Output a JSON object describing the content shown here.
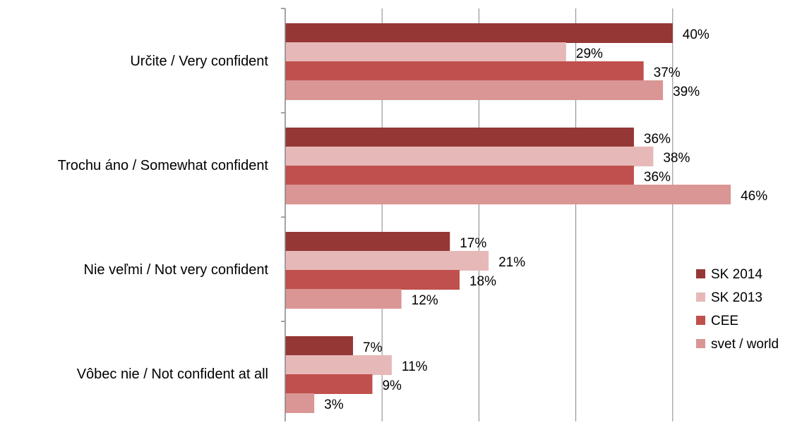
{
  "chart_data": {
    "type": "bar",
    "orientation": "horizontal",
    "categories": [
      "Určite / Very confident",
      "Trochu áno / Somewhat confident",
      "Nie veľmi / Not very confident",
      "Vôbec nie / Not confident at all"
    ],
    "series": [
      {
        "name": "SK 2014",
        "color": "#953735",
        "values": [
          40,
          36,
          17,
          7
        ]
      },
      {
        "name": "SK 2013",
        "color": "#e6b9b8",
        "values": [
          29,
          38,
          21,
          11
        ]
      },
      {
        "name": "CEE",
        "color": "#c0504d",
        "values": [
          37,
          36,
          18,
          9
        ]
      },
      {
        "name": "svet / world",
        "color": "#d99694",
        "values": [
          39,
          46,
          12,
          3
        ]
      }
    ],
    "value_format": "{v}%",
    "xlim": [
      0,
      50
    ],
    "grid": true,
    "legend_position": "right",
    "title": "",
    "xlabel": "",
    "ylabel": ""
  }
}
